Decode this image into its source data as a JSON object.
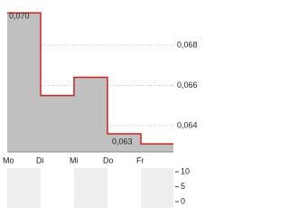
{
  "chart_data": [
    {
      "type": "step",
      "categories": [
        "Mo",
        "Di",
        "Mi",
        "Do",
        "Fr"
      ],
      "series": [
        {
          "color": "#cc2222",
          "fill": "#c0c0c0",
          "values": [
            0.0696,
            0.0655,
            0.0664,
            0.0636,
            0.0631
          ]
        }
      ],
      "annotations": [
        "0,070",
        "0,063"
      ],
      "ylim": [
        0.0627,
        0.0697
      ],
      "yticks": [
        {
          "value": 0.064,
          "label": "0,064"
        },
        {
          "value": 0.066,
          "label": "0,066"
        },
        {
          "value": 0.068,
          "label": "0,068"
        }
      ],
      "grid": true
    },
    {
      "type": "volume",
      "ylim": [
        0,
        10
      ],
      "yticks": [
        0,
        5,
        10
      ]
    }
  ]
}
